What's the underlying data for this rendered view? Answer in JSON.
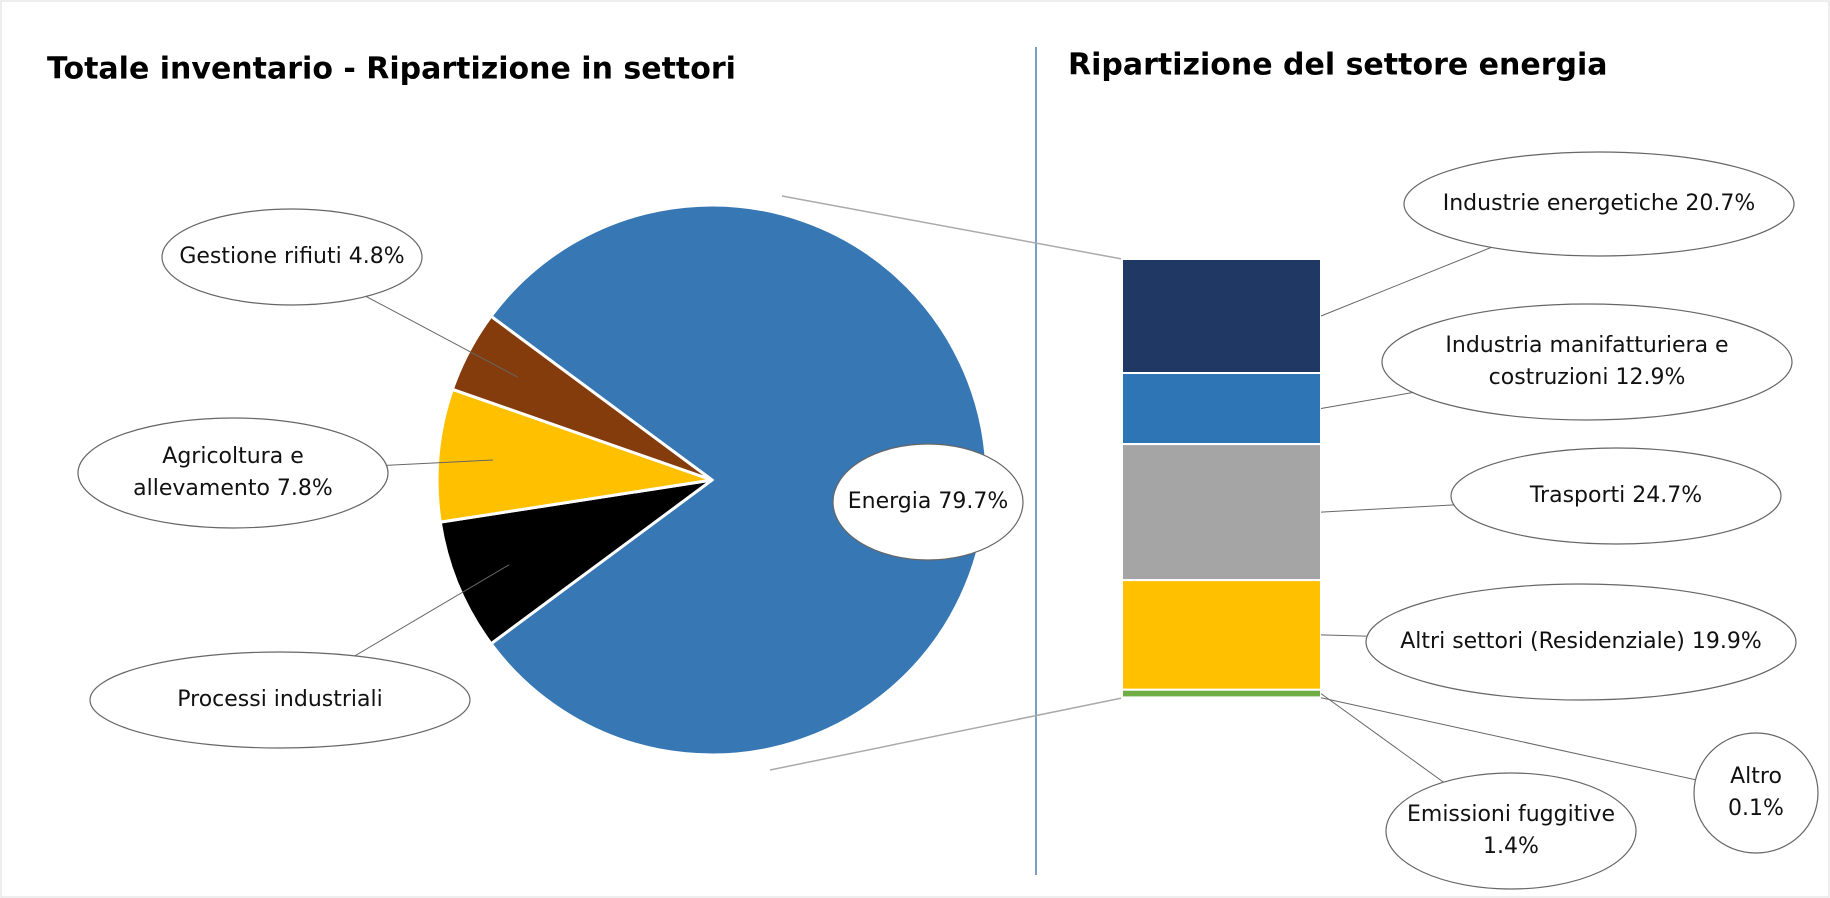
{
  "chart_data": [
    {
      "type": "pie",
      "title": "Totale inventario - Ripartizione in settori",
      "categories": [
        "Energia",
        "Processi industriali",
        "Agricoltura e allevamento",
        "Gestione rifiuti"
      ],
      "values": [
        79.7,
        7.7,
        7.8,
        4.8
      ],
      "value_labels": [
        "79.7%",
        null,
        "7.8%",
        "4.8%"
      ],
      "colors": [
        "#3677b4",
        "#000000",
        "#ffc000",
        "#843c0c"
      ]
    },
    {
      "type": "bar",
      "stacked": true,
      "title": "Ripartizione del settore energia",
      "categories": [
        "Industrie energetiche",
        "Industria manifatturiera e costruzioni",
        "Trasporti",
        "Altri settori (Residenziale)",
        "Emissioni fuggitive",
        "Altro"
      ],
      "values": [
        20.7,
        12.9,
        24.7,
        19.9,
        1.4,
        0.1
      ],
      "value_labels": [
        "20.7%",
        "12.9%",
        "24.7%",
        "19.9%",
        "1.4%",
        "0.1%"
      ],
      "colors": [
        "#203864",
        "#2e75b6",
        "#a5a5a5",
        "#ffc000",
        "#70ad47",
        "#c9c9c9"
      ]
    }
  ]
}
